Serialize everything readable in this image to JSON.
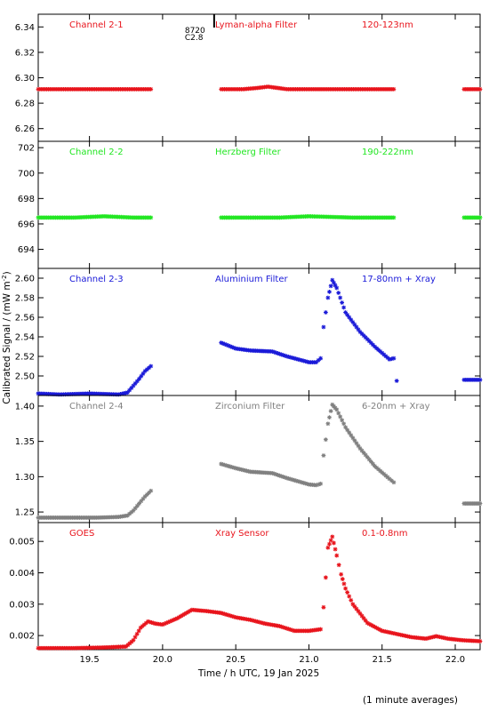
{
  "chart_data": {
    "type": "scatter",
    "xlabel": "Time / h UTC, 19 Jan 2025",
    "ylabel": "Calibrated Signal / (mW m",
    "ylabel_sup": "-2",
    "ylabel_close": ")",
    "footnote": "(1 minute averages)",
    "xlim": [
      19.15,
      22.17
    ],
    "xticks": [
      "19.5",
      "20.0",
      "20.5",
      "21.0",
      "21.5",
      "22.0"
    ],
    "marker_annotation": {
      "x": 20.17,
      "text_top": "8720",
      "text_bottom": "C2.8"
    },
    "panels": [
      {
        "channel": "Channel 2-1",
        "filter": "Lyman-alpha Filter",
        "band": "120-123nm",
        "color": "#e8141c",
        "ylim": [
          6.25,
          6.35
        ],
        "yticks": [
          "6.26",
          "6.28",
          "6.30",
          "6.32",
          "6.34"
        ],
        "segments": [
          {
            "x": [
              19.15,
              19.3,
              19.5,
              19.7,
              19.92
            ],
            "y": [
              6.291,
              6.291,
              6.291,
              6.291,
              6.291
            ]
          },
          {
            "x": [
              20.4,
              20.55,
              20.65,
              20.72,
              20.85,
              21.1,
              21.4,
              21.58
            ],
            "y": [
              6.291,
              6.291,
              6.292,
              6.293,
              6.291,
              6.291,
              6.291,
              6.291
            ]
          },
          {
            "x": [
              22.06,
              22.17
            ],
            "y": [
              6.291,
              6.291
            ]
          }
        ]
      },
      {
        "channel": "Channel 2-2",
        "filter": "Herzberg Filter",
        "band": "190-222nm",
        "color": "#22e622",
        "ylim": [
          692.5,
          702.5
        ],
        "yticks": [
          "694",
          "696",
          "698",
          "700",
          "702"
        ],
        "segments": [
          {
            "x": [
              19.15,
              19.4,
              19.6,
              19.8,
              19.92
            ],
            "y": [
              696.5,
              696.5,
              696.6,
              696.5,
              696.5
            ]
          },
          {
            "x": [
              20.4,
              20.6,
              20.8,
              21.0,
              21.3,
              21.58
            ],
            "y": [
              696.5,
              696.5,
              696.5,
              696.6,
              696.5,
              696.5
            ]
          },
          {
            "x": [
              22.06,
              22.17
            ],
            "y": [
              696.5,
              696.5
            ]
          }
        ]
      },
      {
        "channel": "Channel 2-3",
        "filter": "Aluminium Filter",
        "band": "17-80nm + Xray",
        "color": "#1a1ad8",
        "ylim": [
          2.48,
          2.61
        ],
        "yticks": [
          "2.50",
          "2.52",
          "2.54",
          "2.56",
          "2.58",
          "2.60"
        ],
        "segments": [
          {
            "x": [
              19.15,
              19.3,
              19.5,
              19.7,
              19.76,
              19.8,
              19.84,
              19.88,
              19.92
            ],
            "y": [
              2.482,
              2.481,
              2.482,
              2.481,
              2.483,
              2.49,
              2.497,
              2.505,
              2.51
            ]
          },
          {
            "x": [
              20.4,
              20.5,
              20.6,
              20.75,
              20.85,
              20.95,
              21.0,
              21.05,
              21.08
            ],
            "y": [
              2.534,
              2.528,
              2.526,
              2.525,
              2.52,
              2.516,
              2.514,
              2.514,
              2.518
            ]
          },
          {
            "x": [
              21.1,
              21.13,
              21.16,
              21.19,
              21.25,
              21.35,
              21.45,
              21.55,
              21.58
            ],
            "y": [
              2.55,
              2.58,
              2.598,
              2.59,
              2.565,
              2.545,
              2.53,
              2.517,
              2.518
            ]
          },
          {
            "x": [
              21.6
            ],
            "y": [
              2.495
            ]
          },
          {
            "x": [
              22.06,
              22.17
            ],
            "y": [
              2.496,
              2.496
            ]
          }
        ]
      },
      {
        "channel": "Channel 2-4",
        "filter": "Zirconium Filter",
        "band": "6-20nm + Xray",
        "color": "#808080",
        "ylim": [
          1.235,
          1.415
        ],
        "yticks": [
          "1.25",
          "1.30",
          "1.35",
          "1.40"
        ],
        "segments": [
          {
            "x": [
              19.15,
              19.35,
              19.55,
              19.7,
              19.76,
              19.8,
              19.84,
              19.88,
              19.92
            ],
            "y": [
              1.242,
              1.242,
              1.242,
              1.243,
              1.245,
              1.252,
              1.262,
              1.272,
              1.28
            ]
          },
          {
            "x": [
              20.4,
              20.5,
              20.6,
              20.75,
              20.85,
              20.95,
              21.0,
              21.05,
              21.08
            ],
            "y": [
              1.318,
              1.312,
              1.307,
              1.305,
              1.298,
              1.292,
              1.289,
              1.288,
              1.29
            ]
          },
          {
            "x": [
              21.1,
              21.13,
              21.16,
              21.19,
              21.25,
              21.35,
              21.45,
              21.55,
              21.58
            ],
            "y": [
              1.33,
              1.375,
              1.402,
              1.395,
              1.37,
              1.34,
              1.315,
              1.297,
              1.292
            ]
          },
          {
            "x": [
              22.06,
              22.17
            ],
            "y": [
              1.262,
              1.262
            ]
          }
        ]
      },
      {
        "channel": "GOES",
        "filter": "Xray Sensor",
        "band": "0.1-0.8nm",
        "color": "#e8141c",
        "ylim": [
          0.00155,
          0.0056
        ],
        "yticks": [
          "0.002",
          "0.003",
          "0.004",
          "0.005"
        ],
        "segments": [
          {
            "x": [
              19.15,
              19.4,
              19.6,
              19.75,
              19.8,
              19.85,
              19.9,
              19.95,
              20.0,
              20.1,
              20.2,
              20.3,
              20.4,
              20.5,
              20.6,
              20.7,
              20.8,
              20.9,
              21.0,
              21.08
            ],
            "y": [
              0.0016,
              0.0016,
              0.00162,
              0.00165,
              0.00185,
              0.00225,
              0.00245,
              0.00238,
              0.00235,
              0.00255,
              0.00282,
              0.00278,
              0.00272,
              0.00258,
              0.0025,
              0.00238,
              0.0023,
              0.00215,
              0.00215,
              0.0022
            ]
          },
          {
            "x": [
              21.1,
              21.13,
              21.16,
              21.19,
              21.22,
              21.25,
              21.3,
              21.4,
              21.5,
              21.6,
              21.7,
              21.8,
              21.87,
              21.95,
              22.05,
              22.17
            ],
            "y": [
              0.0029,
              0.0048,
              0.00515,
              0.00455,
              0.00395,
              0.0035,
              0.003,
              0.0024,
              0.00215,
              0.00205,
              0.00195,
              0.0019,
              0.00198,
              0.0019,
              0.00185,
              0.00182
            ]
          }
        ]
      }
    ]
  }
}
